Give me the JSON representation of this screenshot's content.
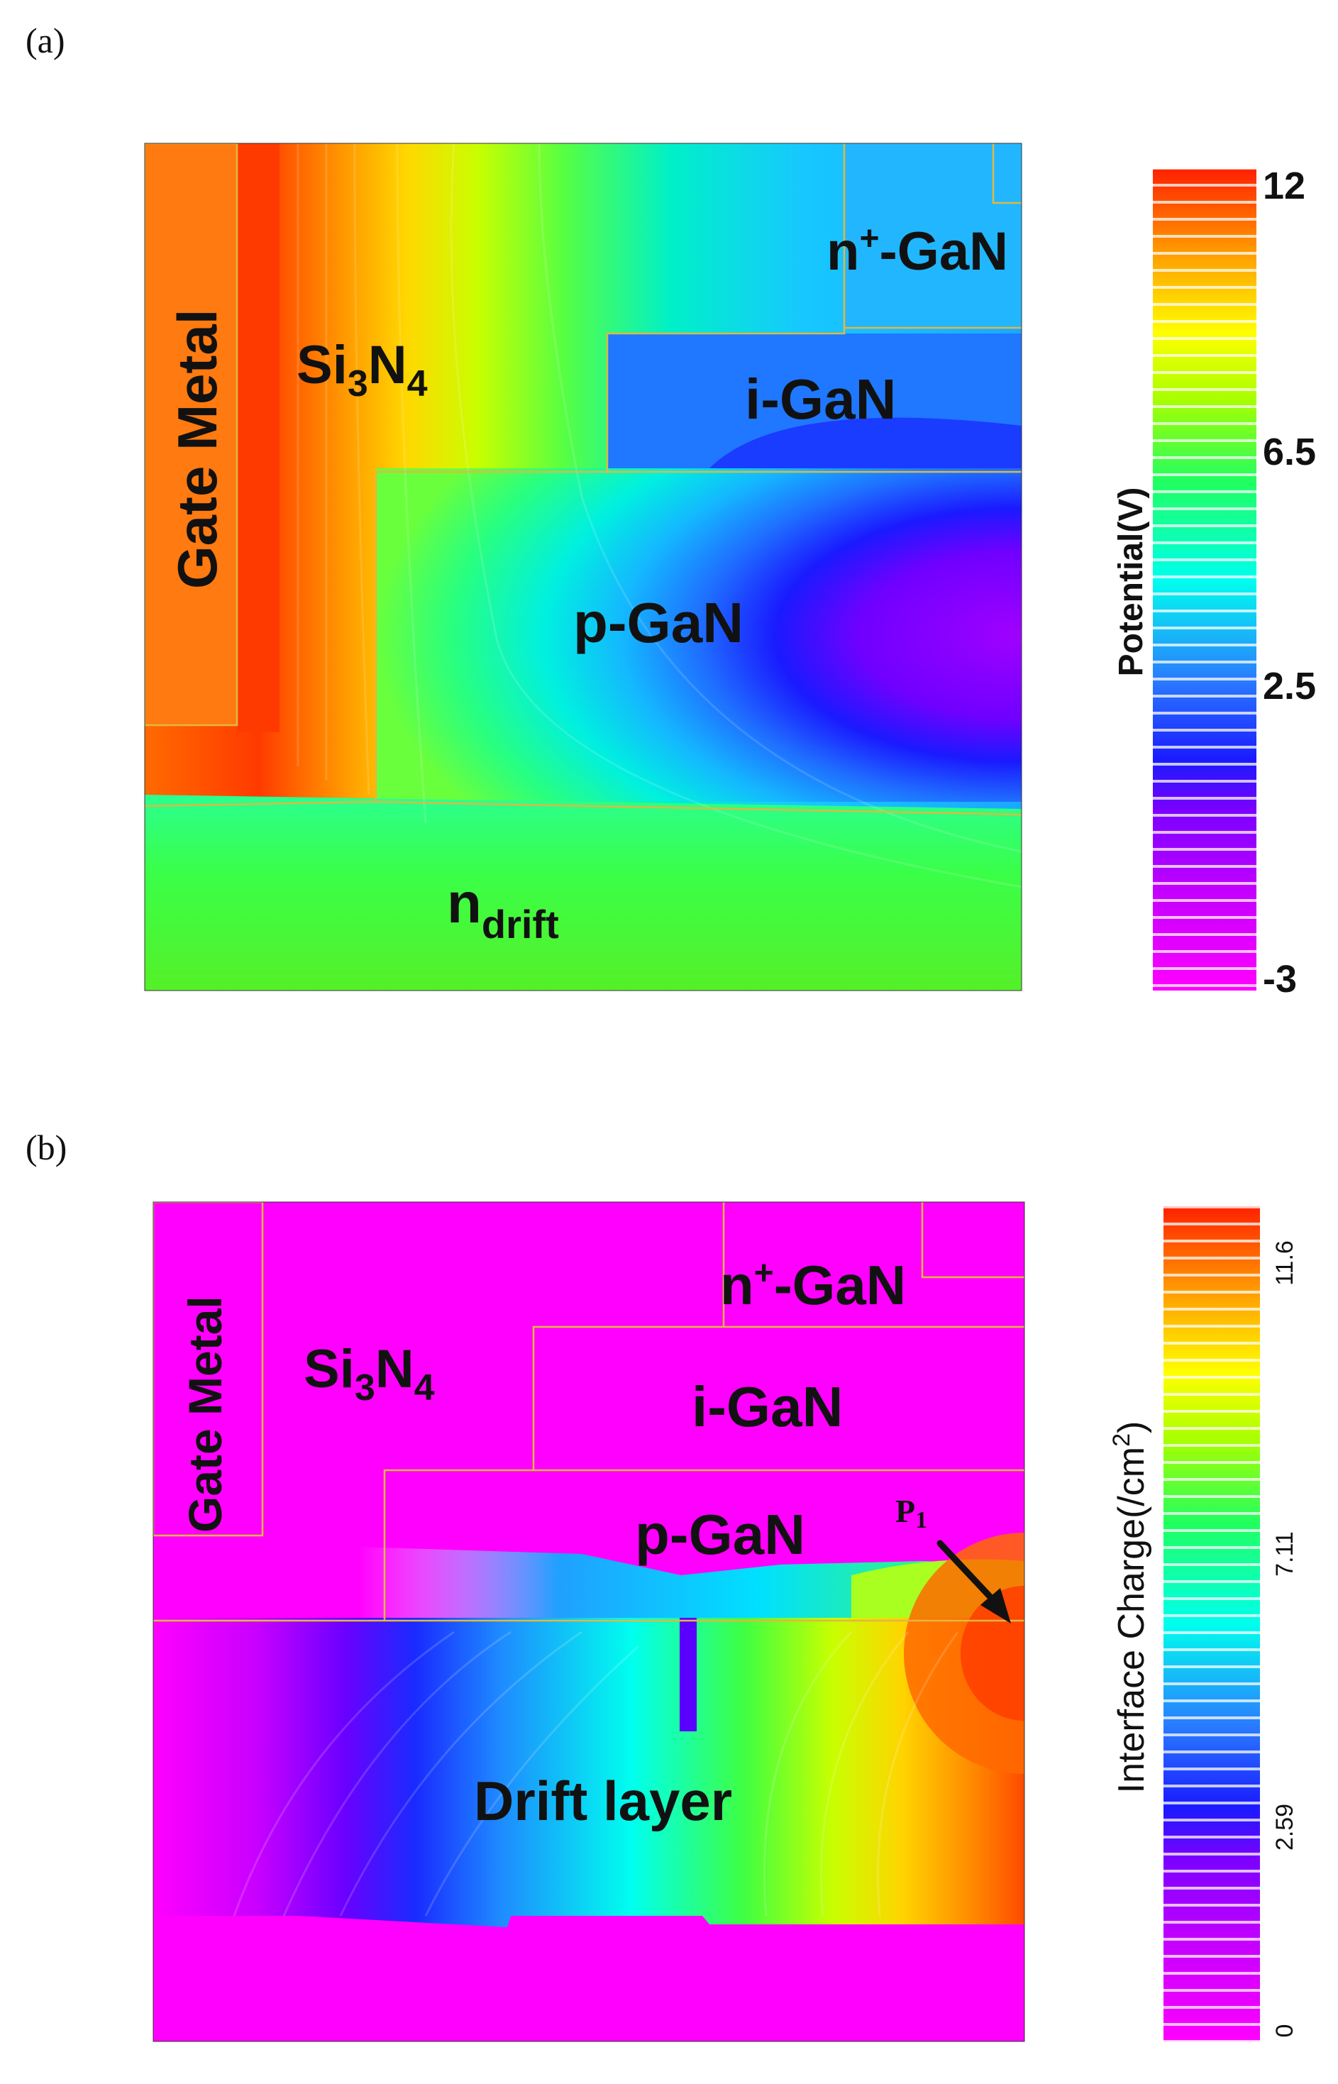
{
  "panel_a": {
    "label": "(a)",
    "regions": {
      "gate_metal": "Gate Metal",
      "si3n4_base": "Si",
      "si3n4_sub1": "3",
      "si3n4_n": "N",
      "si3n4_sub2": "4",
      "nplus_gan_n": "n",
      "nplus_gan_sup": "+",
      "nplus_gan_rest": "-GaN",
      "i_gan": "i-GaN",
      "p_gan": "p-GaN",
      "ndrift_base": "n",
      "ndrift_sub": "drift"
    },
    "colorbar": {
      "title": "Potential(V)",
      "ticks": [
        "12",
        "6.5",
        "2.5",
        "-3"
      ],
      "min": -3,
      "max": 12
    }
  },
  "panel_b": {
    "label": "(b)",
    "regions": {
      "gate_metal": "Gate Metal",
      "si3n4_base": "Si",
      "si3n4_sub1": "3",
      "si3n4_n": "N",
      "si3n4_sub2": "4",
      "nplus_gan_n": "n",
      "nplus_gan_sup": "+",
      "nplus_gan_rest": "-GaN",
      "i_gan": "i-GaN",
      "p_gan": "p-GaN",
      "drift_layer": "Drift layer",
      "point_base": "P",
      "point_sub": "1"
    },
    "colorbar": {
      "title_base": "Interface Charge(/cm",
      "title_sup": "2",
      "title_end": ")",
      "ticks": [
        "11.6",
        "7.11",
        "2.59",
        "0"
      ],
      "min": 0,
      "max": 11.6
    }
  },
  "colors": {
    "boundary": "#e0b840",
    "magenta": "#ff00ff",
    "red": "#ff2000",
    "green": "#44ee22",
    "blue": "#1a5cff"
  }
}
